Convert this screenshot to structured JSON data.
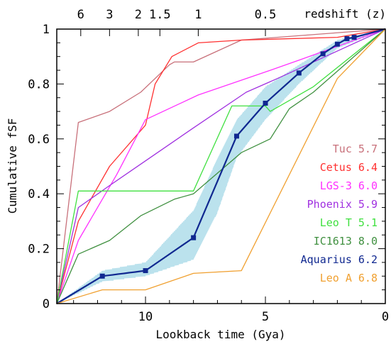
{
  "chart_data": {
    "type": "line",
    "title": "",
    "xlabel": "Lookback time (Gya)",
    "ylabel": "Cumulative fSF",
    "x_reversed": true,
    "xlim": [
      13.7,
      0
    ],
    "ylim": [
      0,
      1
    ],
    "x_ticks": [
      10,
      5,
      0
    ],
    "y_ticks": [
      0,
      0.2,
      0.4,
      0.6,
      0.8,
      1
    ],
    "top_axis": {
      "label": "redshift (z)",
      "ticks": [
        {
          "label": "6",
          "lookback_gya": 12.7
        },
        {
          "label": "3",
          "lookback_gya": 11.5
        },
        {
          "label": "2",
          "lookback_gya": 10.3
        },
        {
          "label": "1.5",
          "lookback_gya": 9.4
        },
        {
          "label": "1",
          "lookback_gya": 7.8
        },
        {
          "label": "0.5",
          "lookback_gya": 5.0
        }
      ]
    },
    "legend_position": "right",
    "series": [
      {
        "name": "Tuc",
        "age": "5.7",
        "color": "#c8707a",
        "x": [
          13.7,
          12.8,
          11.5,
          10.2,
          9.0,
          8.8,
          8.0,
          6.0,
          0
        ],
        "y": [
          0,
          0.66,
          0.7,
          0.77,
          0.87,
          0.88,
          0.88,
          0.96,
          1.0
        ]
      },
      {
        "name": "Cetus",
        "age": "6.4",
        "color": "#ff3030",
        "x": [
          13.7,
          12.8,
          11.5,
          10.0,
          9.6,
          8.9,
          7.8,
          6.0,
          2.0,
          0
        ],
        "y": [
          0,
          0.3,
          0.5,
          0.65,
          0.8,
          0.9,
          0.95,
          0.96,
          0.97,
          1.0
        ]
      },
      {
        "name": "LGS-3",
        "age": "6.0",
        "color": "#ff30ff",
        "x": [
          13.7,
          12.8,
          11.2,
          10.0,
          7.8,
          4.8,
          3.5,
          0
        ],
        "y": [
          0,
          0.23,
          0.47,
          0.67,
          0.76,
          0.85,
          0.89,
          1.0
        ]
      },
      {
        "name": "Phoenix",
        "age": "5.9",
        "color": "#a030e0",
        "x": [
          13.7,
          12.8,
          11.5,
          10.0,
          8.0,
          5.8,
          4.5,
          0
        ],
        "y": [
          0,
          0.35,
          0.43,
          0.52,
          0.64,
          0.77,
          0.82,
          1.0
        ]
      },
      {
        "name": "Leo T",
        "age": "5.1",
        "color": "#40e040",
        "x": [
          13.7,
          12.8,
          8.0,
          6.4,
          5.0,
          4.8,
          3.0,
          0
        ],
        "y": [
          0,
          0.41,
          0.41,
          0.72,
          0.72,
          0.7,
          0.79,
          1.0
        ]
      },
      {
        "name": "IC1613",
        "age": "8.0",
        "color": "#409040",
        "x": [
          13.7,
          12.8,
          11.5,
          10.2,
          8.8,
          8.0,
          6.0,
          4.8,
          4.0,
          3.0,
          0
        ],
        "y": [
          0,
          0.18,
          0.23,
          0.32,
          0.38,
          0.4,
          0.55,
          0.6,
          0.71,
          0.77,
          1.0
        ]
      },
      {
        "name": "Aquarius",
        "age": "6.2",
        "color": "#102890",
        "x": [
          13.7,
          11.8,
          10.0,
          8.0,
          6.2,
          5.0,
          3.6,
          2.6,
          2.0,
          1.6,
          1.3,
          0
        ],
        "y": [
          0,
          0.1,
          0.12,
          0.24,
          0.61,
          0.73,
          0.84,
          0.91,
          0.945,
          0.965,
          0.97,
          1.0
        ],
        "markers": true
      },
      {
        "name": "Leo A",
        "age": "6.8",
        "color": "#f0a030",
        "x": [
          13.7,
          11.8,
          10.0,
          8.0,
          6.0,
          2.0,
          0
        ],
        "y": [
          0,
          0.05,
          0.05,
          0.11,
          0.12,
          0.82,
          1.0
        ]
      }
    ],
    "uncertainty_band": {
      "series": "Aquarius",
      "color": "#9ad4e4",
      "x": [
        13.7,
        11.8,
        10.0,
        8.0,
        7.0,
        6.2,
        5.0,
        3.6,
        2.0,
        0
      ],
      "lower": [
        0,
        0.08,
        0.1,
        0.16,
        0.33,
        0.53,
        0.67,
        0.8,
        0.93,
        1.0
      ],
      "upper": [
        0,
        0.12,
        0.15,
        0.34,
        0.53,
        0.67,
        0.79,
        0.87,
        0.96,
        1.0
      ]
    }
  }
}
